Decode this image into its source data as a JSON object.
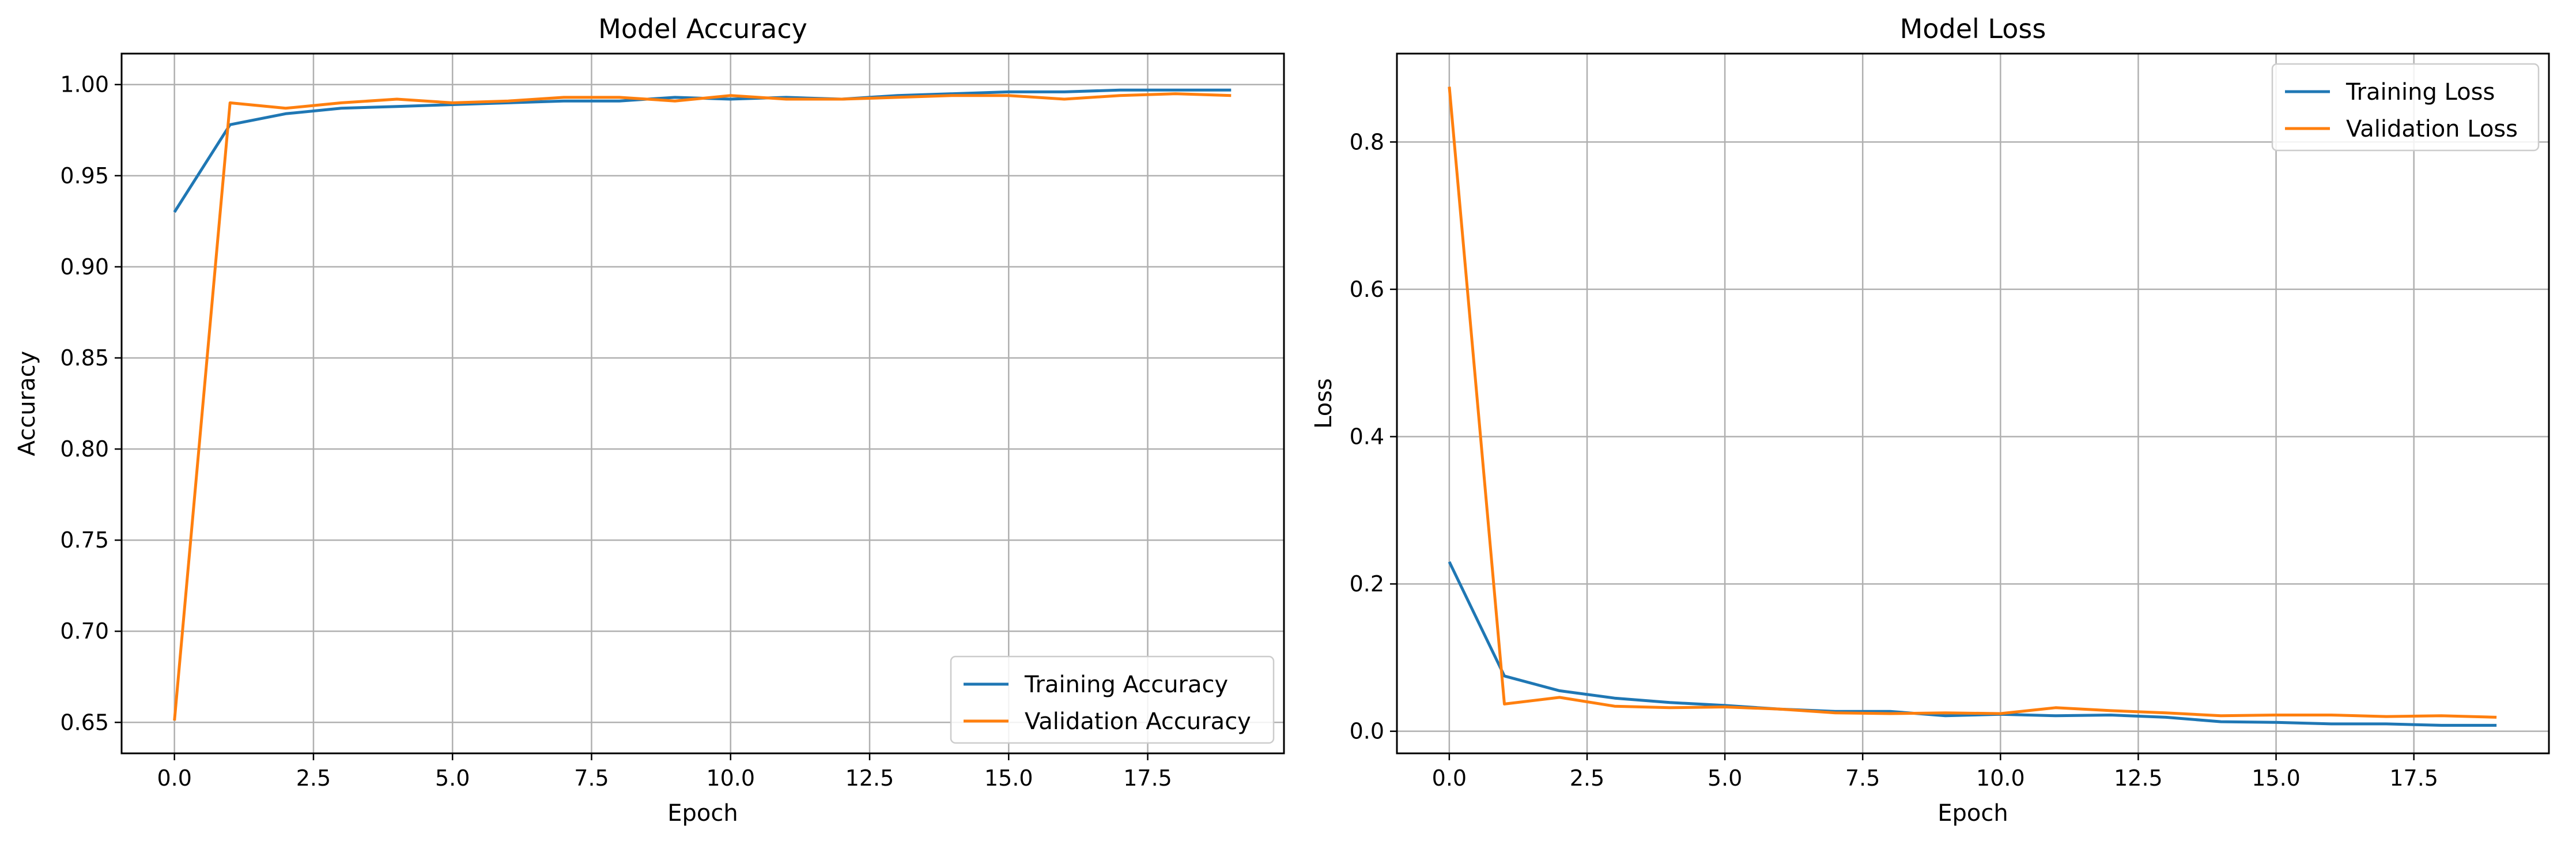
{
  "chart_data": [
    {
      "type": "line",
      "title": "Model Accuracy",
      "xlabel": "Epoch",
      "ylabel": "Accuracy",
      "xlim": [
        -0.95,
        19.95
      ],
      "ylim": [
        0.633,
        1.017
      ],
      "xticks": [
        0.0,
        2.5,
        5.0,
        7.5,
        10.0,
        12.5,
        15.0,
        17.5
      ],
      "xtick_labels": [
        "0.0",
        "2.5",
        "5.0",
        "7.5",
        "10.0",
        "12.5",
        "15.0",
        "17.5"
      ],
      "yticks": [
        0.65,
        0.7,
        0.75,
        0.8,
        0.85,
        0.9,
        0.95,
        1.0
      ],
      "ytick_labels": [
        "0.65",
        "0.70",
        "0.75",
        "0.80",
        "0.85",
        "0.90",
        "0.95",
        "1.00"
      ],
      "grid": true,
      "legend_position": "lower-right",
      "x": [
        0,
        1,
        2,
        3,
        4,
        5,
        6,
        7,
        8,
        9,
        10,
        11,
        12,
        13,
        14,
        15,
        16,
        17,
        18,
        19
      ],
      "series": [
        {
          "name": "Training Accuracy",
          "color": "#1f77b4",
          "values": [
            0.93,
            0.978,
            0.984,
            0.987,
            0.988,
            0.989,
            0.99,
            0.991,
            0.991,
            0.993,
            0.992,
            0.993,
            0.992,
            0.994,
            0.995,
            0.996,
            0.996,
            0.997,
            0.997,
            0.997
          ]
        },
        {
          "name": "Validation Accuracy",
          "color": "#ff7f0e",
          "values": [
            0.651,
            0.99,
            0.987,
            0.99,
            0.992,
            0.99,
            0.991,
            0.993,
            0.993,
            0.991,
            0.994,
            0.992,
            0.992,
            0.993,
            0.994,
            0.994,
            0.992,
            0.994,
            0.995,
            0.994
          ]
        }
      ]
    },
    {
      "type": "line",
      "title": "Model Loss",
      "xlabel": "Epoch",
      "ylabel": "Loss",
      "xlim": [
        -0.95,
        19.95
      ],
      "ylim": [
        -0.03,
        0.92
      ],
      "xticks": [
        0.0,
        2.5,
        5.0,
        7.5,
        10.0,
        12.5,
        15.0,
        17.5
      ],
      "xtick_labels": [
        "0.0",
        "2.5",
        "5.0",
        "7.5",
        "10.0",
        "12.5",
        "15.0",
        "17.5"
      ],
      "yticks": [
        0.0,
        0.2,
        0.4,
        0.6,
        0.8
      ],
      "ytick_labels": [
        "0.0",
        "0.2",
        "0.4",
        "0.6",
        "0.8"
      ],
      "grid": true,
      "legend_position": "upper-right",
      "x": [
        0,
        1,
        2,
        3,
        4,
        5,
        6,
        7,
        8,
        9,
        10,
        11,
        12,
        13,
        14,
        15,
        16,
        17,
        18,
        19
      ],
      "series": [
        {
          "name": "Training Loss",
          "color": "#1f77b4",
          "values": [
            0.23,
            0.075,
            0.055,
            0.045,
            0.039,
            0.035,
            0.03,
            0.027,
            0.027,
            0.021,
            0.023,
            0.021,
            0.022,
            0.019,
            0.013,
            0.012,
            0.01,
            0.01,
            0.008,
            0.008
          ]
        },
        {
          "name": "Validation Loss",
          "color": "#ff7f0e",
          "values": [
            0.875,
            0.037,
            0.046,
            0.034,
            0.032,
            0.033,
            0.03,
            0.025,
            0.024,
            0.025,
            0.024,
            0.032,
            0.028,
            0.025,
            0.021,
            0.022,
            0.022,
            0.02,
            0.021,
            0.019
          ]
        }
      ]
    }
  ]
}
